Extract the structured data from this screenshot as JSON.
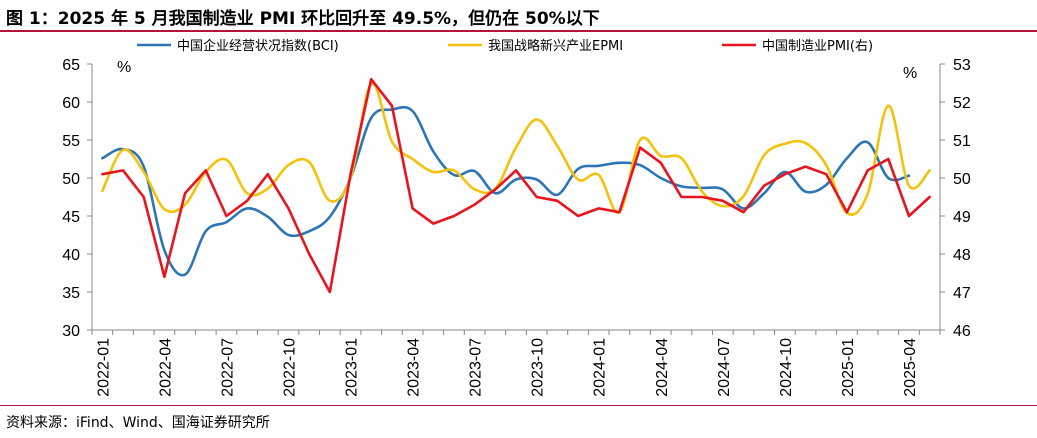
{
  "header": {
    "title": "图 1：2025 年 5 月我国制造业 PMI 环比回升至 49.5%，但仍在 50%以下"
  },
  "footer": {
    "source": "资料来源：iFind、Wind、国海证券研究所"
  },
  "chart_data": {
    "type": "line",
    "left_unit": "%",
    "right_unit": "%",
    "ylim_left": [
      30,
      65
    ],
    "ylim_right": [
      46,
      53
    ],
    "yticks_left": [
      "30",
      "35",
      "40",
      "45",
      "50",
      "55",
      "60",
      "65"
    ],
    "yticks_right": [
      "46",
      "47",
      "48",
      "49",
      "50",
      "51",
      "52",
      "53"
    ],
    "x_tick_labels": [
      "2022-01",
      "2022-04",
      "2022-07",
      "2022-10",
      "2023-01",
      "2023-04",
      "2023-07",
      "2023-10",
      "2024-01",
      "2024-04",
      "2024-07",
      "2024-10",
      "2025-01",
      "2025-04"
    ],
    "x": [
      "2022-01",
      "2022-02",
      "2022-03",
      "2022-04",
      "2022-05",
      "2022-06",
      "2022-07",
      "2022-08",
      "2022-09",
      "2022-10",
      "2022-11",
      "2022-12",
      "2023-01",
      "2023-02",
      "2023-03",
      "2023-04",
      "2023-05",
      "2023-06",
      "2023-07",
      "2023-08",
      "2023-09",
      "2023-10",
      "2023-11",
      "2023-12",
      "2024-01",
      "2024-02",
      "2024-03",
      "2024-04",
      "2024-05",
      "2024-06",
      "2024-07",
      "2024-08",
      "2024-09",
      "2024-10",
      "2024-11",
      "2024-12",
      "2025-01",
      "2025-02",
      "2025-03",
      "2025-04",
      "2025-05"
    ],
    "grid": false,
    "legend_position": "top",
    "series": [
      {
        "name": "中国企业经营状况指数(BCI)",
        "axis": "left",
        "color": "#2e75b6",
        "values": [
          52.6,
          53.8,
          51.5,
          40.5,
          37.3,
          43.0,
          44.2,
          46.0,
          44.9,
          42.5,
          43.0,
          44.9,
          50.0,
          57.9,
          59.0,
          58.8,
          53.5,
          50.4,
          50.9,
          48.0,
          49.8,
          49.8,
          47.8,
          51.2,
          51.6,
          52.0,
          51.7,
          50.0,
          48.9,
          48.7,
          48.5,
          46.0,
          48.0,
          50.8,
          48.2,
          49.1,
          52.6,
          54.7,
          50.0,
          50.3,
          null
        ]
      },
      {
        "name": "我国战略新兴产业EPMI",
        "axis": "left",
        "color": "#f4c20d",
        "values": [
          48.3,
          53.7,
          50.8,
          45.9,
          46.5,
          50.8,
          52.4,
          48.0,
          48.6,
          51.7,
          52.1,
          47.0,
          50.0,
          62.4,
          54.8,
          52.5,
          50.8,
          51.0,
          48.5,
          48.6,
          54.0,
          57.7,
          54.2,
          49.8,
          50.4,
          45.5,
          55.0,
          52.9,
          52.6,
          48.2,
          46.3,
          47.6,
          53.0,
          54.5,
          54.6,
          51.7,
          45.4,
          47.9,
          59.5,
          49.0,
          51.0
        ]
      },
      {
        "name": "中国制造业PMI(右)",
        "axis": "right",
        "color": "#e8141e",
        "values": [
          50.1,
          50.2,
          49.5,
          47.4,
          49.6,
          50.2,
          49.0,
          49.4,
          50.1,
          49.2,
          48.0,
          47.0,
          50.1,
          52.6,
          51.9,
          49.2,
          48.8,
          49.0,
          49.3,
          49.7,
          50.2,
          49.5,
          49.4,
          49.0,
          49.2,
          49.1,
          50.8,
          50.4,
          49.5,
          49.5,
          49.4,
          49.1,
          49.8,
          50.1,
          50.3,
          50.1,
          49.1,
          50.2,
          50.5,
          49.0,
          49.5
        ]
      }
    ]
  }
}
